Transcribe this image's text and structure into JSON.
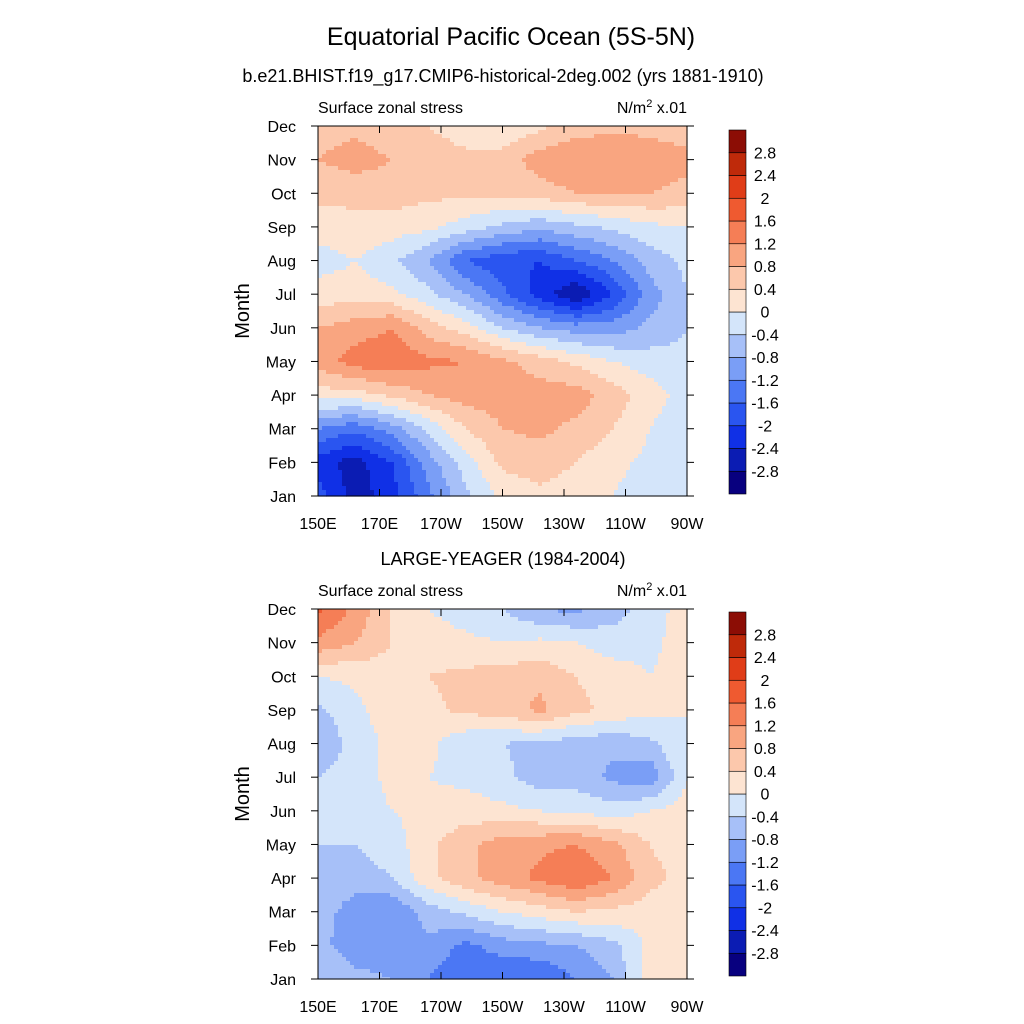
{
  "figure": {
    "title": "Equatorial Pacific Ocean (5S-5N)"
  },
  "chart_data": [
    {
      "type": "heatmap",
      "title": "b.e21.BHIST.f19_g17.CMIP6-historical-2deg.002 (yrs 1881-1910)",
      "left_string": "Surface zonal stress",
      "units": "N/m",
      "units_sup": "2",
      "units_scale": " x.01",
      "ylabel": "Month",
      "x_ticks": [
        "150E",
        "170E",
        "170W",
        "150W",
        "130W",
        "110W",
        "90W"
      ],
      "y_ticks": [
        "Jan",
        "Feb",
        "Mar",
        "Apr",
        "May",
        "Jun",
        "Jul",
        "Aug",
        "Sep",
        "Oct",
        "Nov",
        "Dec"
      ],
      "x_range": [
        "150E",
        "90W"
      ],
      "y_range": [
        "Jan",
        "Dec"
      ],
      "contour_levels": [
        -2.8,
        -2.4,
        -2,
        -1.6,
        -1.2,
        -0.8,
        -0.4,
        0,
        0.4,
        0.8,
        1.2,
        1.6,
        2,
        2.4,
        2.8
      ],
      "grid_approx": [
        [
          -1.8,
          -2.6,
          -2.2,
          -1.3,
          -0.5,
          0.1,
          0.3,
          0.2,
          0.0,
          -0.2,
          -0.4
        ],
        [
          -2.2,
          -2.6,
          -2.0,
          -1.0,
          -0.2,
          0.5,
          0.6,
          0.4,
          0.1,
          -0.1,
          -0.3
        ],
        [
          -1.2,
          -1.5,
          -1.0,
          -0.3,
          0.4,
          0.8,
          0.9,
          0.7,
          0.4,
          0.0,
          -0.3
        ],
        [
          0.2,
          0.2,
          0.5,
          0.8,
          1.0,
          1.0,
          1.0,
          1.0,
          0.6,
          0.2,
          -0.2
        ],
        [
          1.0,
          1.4,
          1.5,
          1.3,
          1.2,
          0.9,
          0.6,
          0.3,
          0.0,
          -0.2,
          -0.3
        ],
        [
          0.8,
          1.0,
          1.2,
          0.6,
          0.2,
          -0.4,
          -0.8,
          -1.0,
          -1.0,
          -0.7,
          -0.4
        ],
        [
          0.2,
          0.2,
          0.1,
          -0.3,
          -0.8,
          -1.5,
          -2.2,
          -2.8,
          -2.0,
          -1.0,
          -0.4
        ],
        [
          -0.2,
          0.0,
          -0.3,
          -0.8,
          -1.6,
          -1.9,
          -2.0,
          -1.6,
          -1.2,
          -0.6,
          -0.3
        ],
        [
          0.2,
          0.3,
          0.2,
          0.1,
          -0.2,
          -0.5,
          -0.7,
          -0.5,
          -0.3,
          -0.1,
          0.0
        ],
        [
          0.5,
          0.5,
          0.6,
          0.5,
          0.5,
          0.5,
          0.6,
          0.8,
          0.8,
          0.8,
          0.7
        ],
        [
          0.8,
          1.0,
          0.8,
          0.6,
          0.5,
          0.6,
          1.0,
          1.2,
          1.1,
          1.0,
          0.9
        ],
        [
          0.6,
          0.7,
          0.5,
          0.4,
          0.2,
          0.0,
          0.3,
          0.6,
          0.7,
          0.7,
          0.6
        ]
      ]
    },
    {
      "type": "heatmap",
      "title": "LARGE-YEAGER (1984-2004)",
      "left_string": "Surface zonal stress",
      "units": "N/m",
      "units_sup": "2",
      "units_scale": " x.01",
      "ylabel": "Month",
      "x_ticks": [
        "150E",
        "170E",
        "170W",
        "150W",
        "130W",
        "110W",
        "90W"
      ],
      "y_ticks": [
        "Jan",
        "Feb",
        "Mar",
        "Apr",
        "May",
        "Jun",
        "Jul",
        "Aug",
        "Sep",
        "Oct",
        "Nov",
        "Dec"
      ],
      "x_range": [
        "150E",
        "90W"
      ],
      "y_range": [
        "Jan",
        "Dec"
      ],
      "contour_levels": [
        -2.8,
        -2.4,
        -2,
        -1.6,
        -1.2,
        -0.8,
        -0.4,
        0,
        0.4,
        0.8,
        1.2,
        1.6,
        2,
        2.4,
        2.8
      ],
      "grid_approx": [
        [
          -0.4,
          -0.7,
          -0.8,
          -1.2,
          -1.6,
          -1.6,
          -1.6,
          -1.2,
          -0.8,
          0.2,
          0.4
        ],
        [
          -0.7,
          -1.0,
          -1.0,
          -0.9,
          -1.3,
          -1.0,
          -0.9,
          -0.8,
          -0.5,
          0.1,
          0.4
        ],
        [
          -0.6,
          -1.0,
          -1.2,
          -0.6,
          -0.3,
          0.0,
          0.2,
          0.4,
          0.3,
          0.2,
          0.3
        ],
        [
          -0.5,
          -0.6,
          -0.4,
          0.3,
          0.7,
          1.0,
          1.3,
          1.6,
          1.2,
          0.5,
          0.3
        ],
        [
          -0.4,
          -0.4,
          -0.2,
          0.3,
          0.7,
          1.0,
          1.1,
          1.2,
          0.9,
          0.4,
          0.2
        ],
        [
          -0.3,
          -0.2,
          0.0,
          0.1,
          0.2,
          0.1,
          0.0,
          -0.1,
          -0.2,
          0.0,
          0.2
        ],
        [
          -0.4,
          -0.2,
          0.1,
          0.0,
          -0.1,
          -0.3,
          -0.6,
          -0.6,
          -0.9,
          -1.1,
          0.0
        ],
        [
          -0.8,
          -0.2,
          0.1,
          0.1,
          -0.3,
          -0.4,
          -0.5,
          -0.6,
          -0.7,
          -0.5,
          0.0
        ],
        [
          -0.5,
          -0.1,
          0.2,
          0.3,
          0.5,
          0.6,
          0.9,
          0.5,
          0.3,
          0.1,
          0.0
        ],
        [
          0.0,
          0.1,
          0.2,
          0.4,
          0.5,
          0.6,
          0.7,
          0.4,
          0.2,
          0.0,
          0.2
        ],
        [
          1.1,
          0.8,
          0.4,
          0.2,
          0.1,
          0.0,
          0.1,
          0.0,
          -0.2,
          -0.1,
          0.2
        ],
        [
          1.7,
          1.1,
          0.4,
          0.0,
          -0.2,
          -0.4,
          -0.8,
          -0.9,
          -0.6,
          -0.2,
          0.2
        ]
      ]
    }
  ],
  "colorbar": {
    "labels": [
      "-2.8",
      "-2.4",
      "-2",
      "-1.6",
      "-1.2",
      "-0.8",
      "-0.4",
      "0",
      "0.4",
      "0.8",
      "1.2",
      "1.6",
      "2",
      "2.4",
      "2.8"
    ],
    "colors": [
      "#08007f",
      "#0b1cb3",
      "#1030e6",
      "#2a55f0",
      "#4b77f4",
      "#7a9ef6",
      "#a7c0f8",
      "#d4e5fa",
      "#fde4d2",
      "#fcc8ac",
      "#f9a580",
      "#f57e56",
      "#ef5a30",
      "#e03d18",
      "#bf2a0a",
      "#8c0d05"
    ]
  }
}
